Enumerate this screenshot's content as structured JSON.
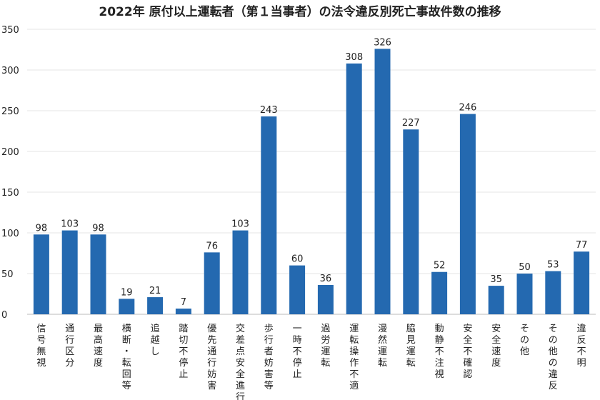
{
  "chart_data": {
    "type": "bar",
    "title": "2022年 原付以上運転者（第１当事者）の法令違反別死亡事故件数の推移",
    "xlabel": "",
    "ylabel": "",
    "ylim": [
      0,
      350
    ],
    "yticks": [
      0,
      50,
      100,
      150,
      200,
      250,
      300,
      350
    ],
    "grid": true,
    "legend": "none",
    "bar_color": "#2469b0",
    "categories": [
      "信号無視",
      "通行区分",
      "最高速度",
      "横断・転回等",
      "追越し",
      "踏切不停止",
      "優先通行妨害",
      "交差点安全進行",
      "歩行者妨害等",
      "一時不停止",
      "過労運転",
      "運転操作不適",
      "漫然運転",
      "脇見運転",
      "動静不注視",
      "安全不確認",
      "安全速度",
      "その他",
      "その他の違反",
      "違反不明"
    ],
    "values": [
      98,
      103,
      98,
      19,
      21,
      7,
      76,
      103,
      243,
      60,
      36,
      308,
      326,
      227,
      52,
      246,
      35,
      50,
      53,
      77
    ]
  }
}
